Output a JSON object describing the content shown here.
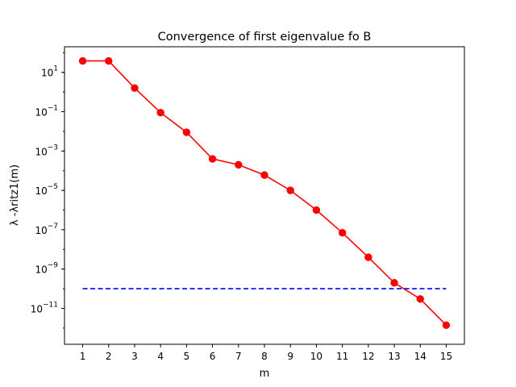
{
  "chart_data": {
    "type": "line",
    "title": "Convergence of first eigenvalue fo B",
    "xlabel": "m",
    "ylabel": "λ -λritz1(m)",
    "yscale": "log",
    "xlim": [
      0.3,
      15.7
    ],
    "ylim": [
      1.5e-13,
      200
    ],
    "grid": false,
    "x_ticks": [
      "1",
      "2",
      "3",
      "4",
      "5",
      "6",
      "7",
      "8",
      "9",
      "10",
      "11",
      "12",
      "13",
      "14",
      "15"
    ],
    "y_ticks": [
      {
        "value": 1e-11,
        "base": "10",
        "exp": "−11"
      },
      {
        "value": 1e-09,
        "base": "10",
        "exp": "−9"
      },
      {
        "value": 1e-07,
        "base": "10",
        "exp": "−7"
      },
      {
        "value": 1e-05,
        "base": "10",
        "exp": "−5"
      },
      {
        "value": 0.001,
        "base": "10",
        "exp": "−3"
      },
      {
        "value": 0.1,
        "base": "10",
        "exp": "−1"
      },
      {
        "value": 10,
        "base": "10",
        "exp": "1"
      }
    ],
    "series": [
      {
        "color": "#ff0000",
        "style": "solid-with-circle-markers",
        "x": [
          1,
          2,
          3,
          4,
          5,
          6,
          7,
          8,
          9,
          10,
          11,
          12,
          13,
          14,
          15
        ],
        "y": [
          38,
          38,
          1.6,
          0.09,
          0.009,
          0.0004,
          0.0002,
          6e-05,
          1e-05,
          1e-06,
          7e-08,
          4e-09,
          2e-10,
          3e-11,
          1.4e-12
        ]
      },
      {
        "color": "#0000ff",
        "style": "dashed",
        "x": [
          1,
          15
        ],
        "y": [
          1e-10,
          1e-10
        ]
      }
    ]
  }
}
